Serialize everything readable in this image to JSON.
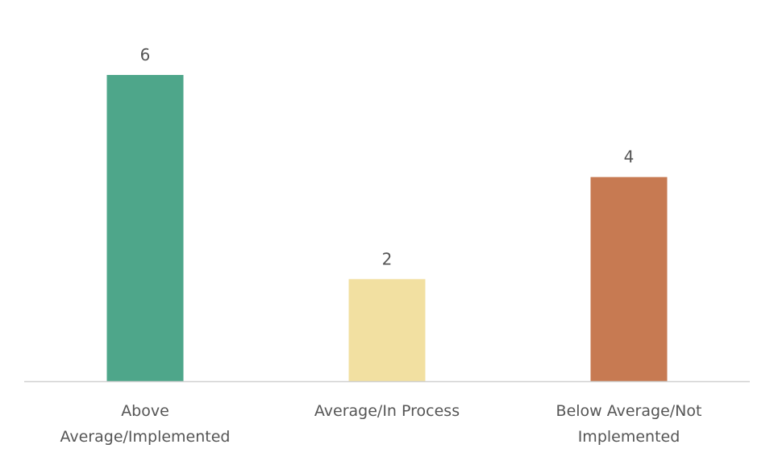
{
  "chart_data": {
    "type": "bar",
    "categories": [
      [
        "Above",
        "Average/Implemented"
      ],
      [
        "Average/In Process"
      ],
      [
        "Below Average/Not",
        "Implemented"
      ]
    ],
    "values": [
      6,
      2,
      4
    ],
    "data_labels": [
      "6",
      "2",
      "4"
    ],
    "colors": [
      "#4ea68a",
      "#f2e0a1",
      "#c77a52"
    ],
    "axis_color": "#d0d0d0",
    "ylim": [
      0,
      6
    ],
    "grid": false,
    "legend": "none",
    "title": "",
    "xlabel": "",
    "ylabel": ""
  }
}
